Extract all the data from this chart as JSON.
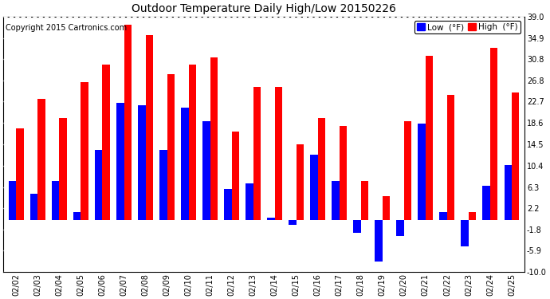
{
  "title": "Outdoor Temperature Daily High/Low 20150226",
  "copyright": "Copyright 2015 Cartronics.com",
  "legend_low": "Low  (°F)",
  "legend_high": "High  (°F)",
  "dates": [
    "02/02",
    "02/03",
    "02/04",
    "02/05",
    "02/06",
    "02/07",
    "02/08",
    "02/09",
    "02/10",
    "02/11",
    "02/12",
    "02/13",
    "02/14",
    "02/15",
    "02/16",
    "02/17",
    "02/18",
    "02/19",
    "02/20",
    "02/21",
    "02/22",
    "02/23",
    "02/24",
    "02/25"
  ],
  "high": [
    17.5,
    23.2,
    19.5,
    26.5,
    29.8,
    37.5,
    35.5,
    27.9,
    29.8,
    31.2,
    17.0,
    25.5,
    25.5,
    14.5,
    19.5,
    18.0,
    7.5,
    4.5,
    19.0,
    31.5,
    24.0,
    1.5,
    33.0,
    24.5
  ],
  "low": [
    7.5,
    5.0,
    7.5,
    1.5,
    13.5,
    22.5,
    22.0,
    13.5,
    21.5,
    19.0,
    6.0,
    7.0,
    0.5,
    -1.0,
    12.5,
    7.5,
    -2.5,
    -8.0,
    -3.0,
    18.5,
    1.5,
    -5.0,
    6.5,
    10.5
  ],
  "high_color": "#ff0000",
  "low_color": "#0000ff",
  "bg_color": "#ffffff",
  "plot_bg_color": "#ffffff",
  "grid_color": "#b0b0b0",
  "border_color": "#000000",
  "ylim": [
    -10.0,
    39.0
  ],
  "yticks": [
    -10.0,
    -5.9,
    -1.8,
    2.2,
    6.3,
    10.4,
    14.5,
    18.6,
    22.7,
    26.8,
    30.8,
    34.9,
    39.0
  ],
  "figsize": [
    6.9,
    3.75
  ],
  "dpi": 100,
  "bar_width": 0.35,
  "title_fontsize": 10,
  "tick_fontsize": 7,
  "copyright_fontsize": 7,
  "legend_fontsize": 7.5
}
